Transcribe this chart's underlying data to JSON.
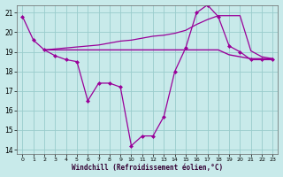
{
  "xlabel": "Windchill (Refroidissement éolien,°C)",
  "background_color": "#c8eaea",
  "grid_color": "#99cccc",
  "line_color": "#990099",
  "xmin": -0.5,
  "xmax": 23.5,
  "ymin": 13.8,
  "ymax": 21.4,
  "yticks": [
    14,
    15,
    16,
    17,
    18,
    19,
    20,
    21
  ],
  "xticks": [
    0,
    1,
    2,
    3,
    4,
    5,
    6,
    7,
    8,
    9,
    10,
    11,
    12,
    13,
    14,
    15,
    16,
    17,
    18,
    19,
    20,
    21,
    22,
    23
  ],
  "line1_x": [
    0,
    1,
    2,
    3,
    4,
    5,
    6,
    7,
    8,
    9,
    10,
    11,
    12,
    13,
    14,
    15,
    16,
    17,
    18,
    19,
    20,
    21,
    22,
    23
  ],
  "line1_y": [
    20.8,
    19.6,
    19.1,
    18.8,
    18.6,
    18.5,
    16.5,
    17.4,
    17.4,
    17.2,
    14.2,
    14.7,
    14.7,
    15.7,
    18.0,
    19.2,
    21.0,
    21.4,
    20.8,
    19.3,
    19.0,
    18.6,
    18.6,
    18.6
  ],
  "line2_x": [
    2,
    3,
    4,
    5,
    6,
    7,
    8,
    9,
    10,
    11,
    12,
    13,
    14,
    15,
    16,
    17,
    18,
    19,
    20,
    21,
    22,
    23
  ],
  "line2_y": [
    19.1,
    19.1,
    19.1,
    19.1,
    19.1,
    19.1,
    19.1,
    19.1,
    19.1,
    19.1,
    19.1,
    19.1,
    19.1,
    19.1,
    19.1,
    19.1,
    19.1,
    18.85,
    18.75,
    18.65,
    18.65,
    18.65
  ],
  "line3_x": [
    2,
    3,
    4,
    5,
    6,
    7,
    8,
    9,
    10,
    11,
    12,
    13,
    14,
    15,
    16,
    17,
    18,
    19,
    20,
    21,
    22,
    23
  ],
  "line3_y": [
    19.1,
    19.15,
    19.2,
    19.25,
    19.3,
    19.35,
    19.45,
    19.55,
    19.6,
    19.7,
    19.8,
    19.85,
    19.95,
    20.1,
    20.4,
    20.65,
    20.85,
    20.85,
    20.85,
    19.05,
    18.75,
    18.65
  ]
}
